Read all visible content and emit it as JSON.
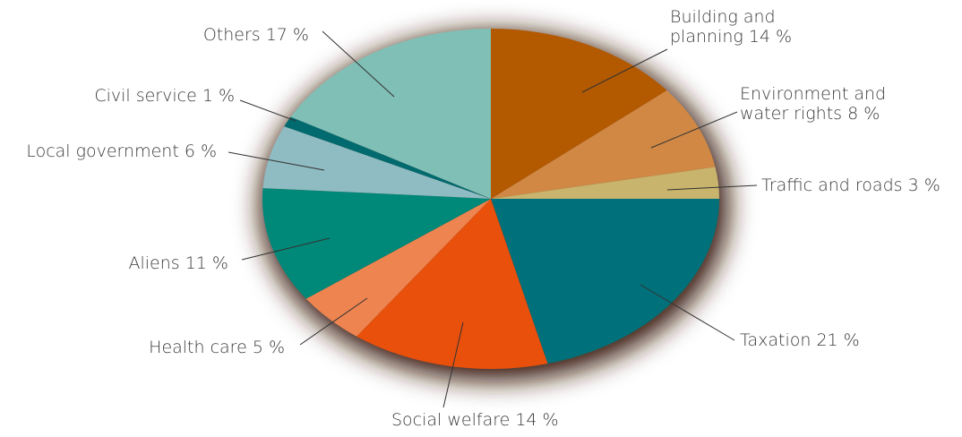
{
  "chart_data": {
    "type": "pie",
    "categories": [
      "Building and planning",
      "Environment and water rights",
      "Traffic and roads",
      "Taxation",
      "Social welfare",
      "Health care",
      "Aliens",
      "Local government",
      "Civil service",
      "Others"
    ],
    "values": [
      14,
      8,
      3,
      21,
      14,
      5,
      11,
      6,
      1,
      17
    ],
    "value_labels": [
      "14 %",
      "8 %",
      "3 %",
      "21 %",
      "14 %",
      "5 %",
      "11 %",
      "6 %",
      "1 %",
      "17 %"
    ],
    "colors": [
      "#b35900",
      "#d08844",
      "#c9b46e",
      "#00707a",
      "#e8500c",
      "#ee8450",
      "#008878",
      "#8fbcc2",
      "#006a6e",
      "#80bfb6"
    ]
  }
}
